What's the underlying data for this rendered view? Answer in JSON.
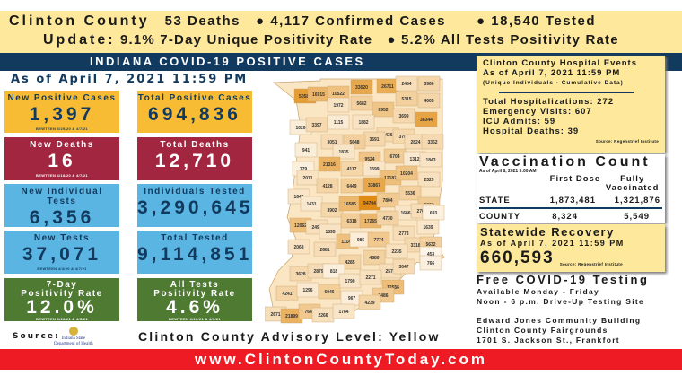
{
  "banner": {
    "county": "Clinton County",
    "deaths": "53 Deaths",
    "cases": "● 4,117 Confirmed Cases",
    "tested": "● 18,540 Tested",
    "update_label": "Update:",
    "positivity7": "9.1% 7-Day Unique Positivity Rate",
    "positivity_all": "● 5.2% All Tests Positivity Rate"
  },
  "header": {
    "title": "INDIANA COVID-19 POSITIVE CASES",
    "as_of": "As of April 7, 2021 11:59 PM"
  },
  "cards": [
    {
      "title": "New Positive Cases",
      "value": "1,397",
      "foot": "BEWTEEN 3/29/20 & 4/7/21",
      "color": "#f7bc33"
    },
    {
      "title": "Total Positive Cases",
      "value": "694,836",
      "foot": "",
      "color": "#f7bc33"
    },
    {
      "title": "New Deaths",
      "value": "16",
      "foot": "BEWTEEN 4/18/20 & 4/7/21",
      "color": "#a22640"
    },
    {
      "title": "Total Deaths",
      "value": "12,710",
      "foot": "",
      "color": "#a22640"
    },
    {
      "title": "New Individual Tests",
      "value": "6,356",
      "foot": "",
      "color": "#5bb5e3"
    },
    {
      "title": "Individuals Tested",
      "value": "3,290,645",
      "foot": "",
      "color": "#5bb5e3"
    },
    {
      "title": "New Tests",
      "value": "37,071",
      "foot": "BEWTEEN 4/4/20 & 4/7/21",
      "color": "#5bb5e3"
    },
    {
      "title": "Total Tested",
      "value": "9,114,851",
      "foot": "",
      "color": "#5bb5e3"
    },
    {
      "title": "7-Day",
      "title2": "Positivity Rate",
      "value": "12.0%",
      "foot": "BEWTEEN 3/26/21 & 4/5/21",
      "color": "#4e7a32"
    },
    {
      "title": "All Tests",
      "title2": "Positivity Rate",
      "value": "4.6%",
      "foot": "BEWTEEN 3/26/21 & 4/5/21",
      "color": "#4e7a32"
    }
  ],
  "source": {
    "label": "Source:",
    "logo_text": "Indiana State Department of Health"
  },
  "advisory": "Clinton County Advisory Level: Yellow",
  "website": "www.ClintonCountyToday.com",
  "map_counts": [
    50589,
    16915,
    10522,
    33020,
    26711,
    2454,
    3966,
    1972,
    5682,
    5315,
    4005,
    8952,
    1020,
    3397,
    1115,
    1882,
    3699,
    38344,
    3436,
    3707,
    3691,
    3051,
    5648,
    2824,
    3362,
    941,
    1835,
    6704,
    1312,
    1843,
    9524,
    21316,
    779,
    4117,
    1599,
    12187,
    10204,
    2071,
    2329,
    4128,
    6449,
    33867,
    5536,
    1643,
    1431,
    3902,
    16586,
    94704,
    7804,
    6830,
    1686,
    2762,
    693,
    12062,
    2494,
    6318,
    17265,
    4730,
    1639,
    1895,
    2773,
    11142,
    985,
    7774,
    3318,
    5632,
    2068,
    2681,
    2235,
    453,
    4285,
    4880,
    766,
    3628,
    2879,
    818,
    2578,
    3047,
    1790,
    2271,
    12556,
    4241,
    1296,
    6046,
    967,
    7486,
    4239,
    2671,
    21899,
    7642,
    2266,
    1784
  ],
  "hospital": {
    "title": "Clinton County Hospital Events",
    "as_of": "As of April 7, 2021 11:59 PM",
    "note": "(Unique Individuals - Cumulative Data)",
    "lines": [
      "Total Hospitalizations: 272",
      "Emergency Visits: 607",
      "ICU Admits: 59",
      "Hospital Deaths: 39"
    ],
    "source": "Source: Regenstrief Institute"
  },
  "vaccination": {
    "title": "Vaccination Count",
    "as_of": "As of April 8, 2021 5:00 AM",
    "col1": "First Dose",
    "col2": "Fully Vaccinated",
    "rows": [
      {
        "label": "STATE",
        "first": "1,873,481",
        "full": "1,321,876"
      },
      {
        "label": "COUNTY",
        "first": "8,324",
        "full": "5,549"
      }
    ]
  },
  "recovery": {
    "title": "Statewide Recovery",
    "as_of": "As of April 7, 2021 11:59 PM",
    "value": "660,593",
    "source": "Source: Regenstrief Institute"
  },
  "testing": {
    "title": "Free COVID-19 Testing",
    "line1": "Available Monday - Friday",
    "line2": "Noon - 6 p.m. Drive-Up Testing Site",
    "addr1": "Edward Jones Community Building",
    "addr2": "Clinton County Fairgrounds",
    "addr3": "1701 S. Jackson St., Frankfort"
  }
}
